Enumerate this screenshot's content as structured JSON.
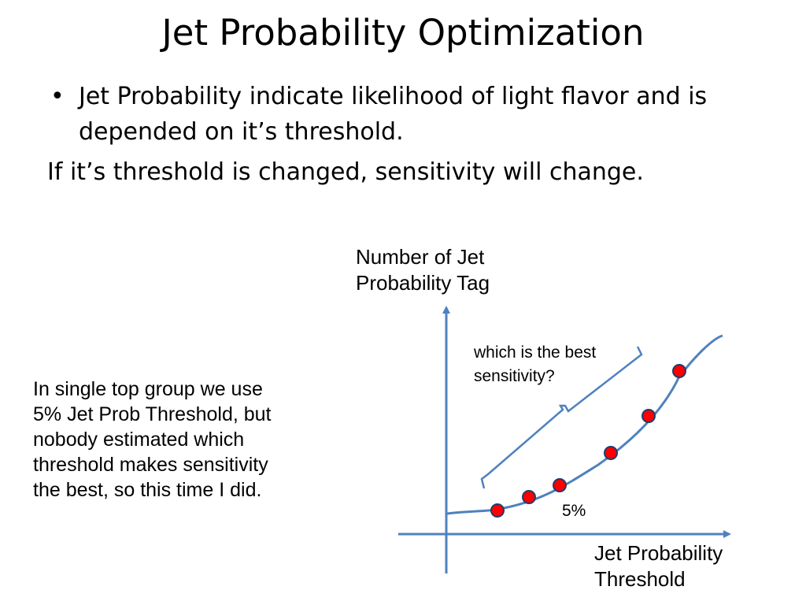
{
  "slide": {
    "title": "Jet Probability Optimization",
    "bullets": [
      {
        "type": "bullet",
        "marker": "•",
        "text": "Jet Probability indicate likelihood of light flavor and is depended on it’s threshold."
      },
      {
        "type": "plain",
        "text": "If it’s threshold is changed, sensitivity will change."
      }
    ],
    "side_note": "In single top group we use\n5% Jet Prob Threshold, but\nnobody estimated which\nthreshold makes sensitivity\nthe best, so this time I did."
  },
  "diagram": {
    "y_axis_label": "Number of Jet\nProbability Tag",
    "x_axis_label": "Jet Probability\nThreshold",
    "brace_annotation": "which is the best\nsensitivity?",
    "point_label": "5%",
    "colors": {
      "axis": "#4f81bd",
      "curve": "#4f81bd",
      "point": "#ff0000",
      "point_stroke": "#1f3c6e"
    },
    "points_on_curve": 6
  }
}
